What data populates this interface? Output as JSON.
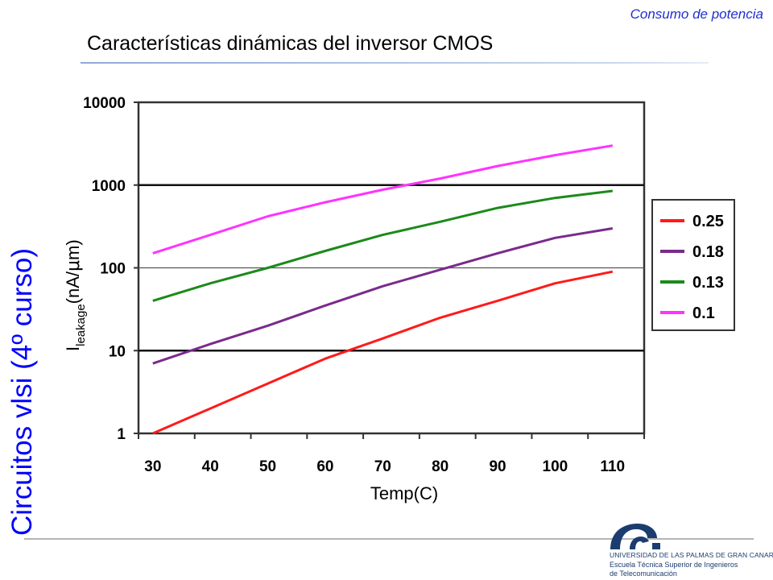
{
  "header": {
    "tag": "Consumo de potencia"
  },
  "slide": {
    "title": "Características dinámicas del inversor CMOS"
  },
  "side_label": "Circuitos vlsi (4º curso)",
  "logo": {
    "line1": "UNIVERSIDAD DE LAS PALMAS DE GRAN CANARIA",
    "line2": "Escuela Técnica Superior de Ingenieros",
    "line3": "de Telecomunicación",
    "color": "#1b3c6e"
  },
  "chart_data": {
    "type": "line",
    "xlabel": "Temp(C)",
    "ylabel_main": "I",
    "ylabel_sub": "leakage",
    "ylabel_unit": "(nA/",
    "ylabel_mu": "μ",
    "ylabel_end": "m)",
    "y_scale": "log",
    "ylim": [
      1,
      10000
    ],
    "y_ticks": [
      1,
      10,
      100,
      1000,
      10000
    ],
    "y_tick_labels": [
      "1",
      "10",
      "100",
      "1000",
      "10000"
    ],
    "x": [
      30,
      40,
      50,
      60,
      70,
      80,
      90,
      100,
      110
    ],
    "x_tick_labels": [
      "30",
      "40",
      "50",
      "60",
      "70",
      "80",
      "90",
      "100",
      "110"
    ],
    "legend_position": "right",
    "series": [
      {
        "name": "0.25",
        "color": "#ff1a1a",
        "values": [
          1,
          2,
          4,
          8,
          14,
          25,
          40,
          65,
          90
        ]
      },
      {
        "name": "0.18",
        "color": "#7a2a8c",
        "values": [
          7,
          12,
          20,
          35,
          60,
          95,
          150,
          230,
          300
        ]
      },
      {
        "name": "0.13",
        "color": "#1b8a1b",
        "values": [
          40,
          65,
          100,
          160,
          250,
          360,
          530,
          700,
          850
        ]
      },
      {
        "name": "0.1",
        "color": "#ff33ff",
        "values": [
          150,
          250,
          420,
          620,
          880,
          1200,
          1700,
          2300,
          3000
        ]
      }
    ]
  }
}
